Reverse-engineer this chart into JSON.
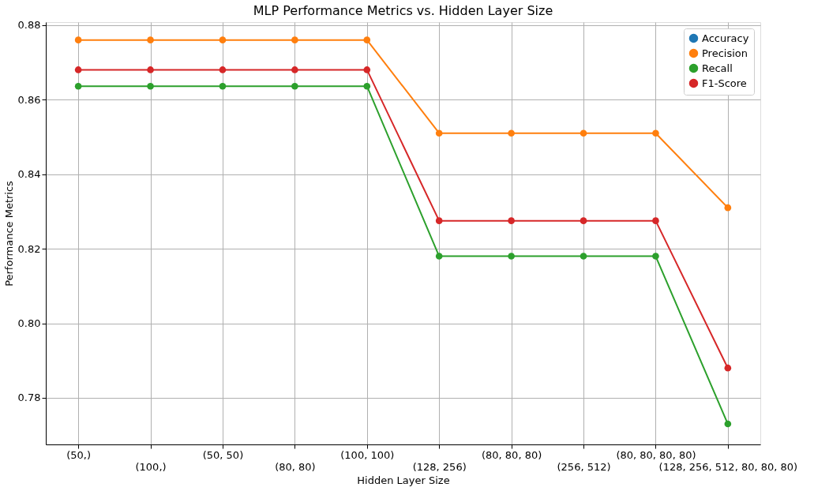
{
  "chart_data": {
    "type": "line",
    "title": "MLP Performance Metrics vs. Hidden Layer Size",
    "xlabel": "Hidden Layer Size",
    "ylabel": "Performance Metrics",
    "categories": [
      "(50,)",
      "(100,)",
      "(50, 50)",
      "(80, 80)",
      "(100, 100)",
      "(128, 256)",
      "(80, 80, 80)",
      "(256, 512)",
      "(80, 80, 80, 80)",
      "(128, 256, 512, 80, 80, 80)"
    ],
    "series": [
      {
        "name": "Accuracy",
        "color": "#1f77b4",
        "values": [
          null,
          null,
          null,
          null,
          null,
          null,
          null,
          null,
          null,
          null
        ]
      },
      {
        "name": "Precision",
        "color": "#ff7f0e",
        "values": [
          0.876,
          0.876,
          0.876,
          0.876,
          0.876,
          0.851,
          0.851,
          0.851,
          0.851,
          0.831
        ]
      },
      {
        "name": "Recall",
        "color": "#2ca02c",
        "values": [
          0.8636,
          0.8636,
          0.8636,
          0.8636,
          0.8636,
          0.818,
          0.818,
          0.818,
          0.818,
          0.773
        ]
      },
      {
        "name": "F1-Score",
        "color": "#d62728",
        "values": [
          0.868,
          0.868,
          0.868,
          0.868,
          0.868,
          0.8275,
          0.8275,
          0.8275,
          0.8275,
          0.788
        ]
      }
    ],
    "ylim": [
      0.7675,
      0.8808
    ],
    "yticks": [
      {
        "value": 0.78,
        "label": "0.78"
      },
      {
        "value": 0.8,
        "label": "0.80"
      },
      {
        "value": 0.82,
        "label": "0.82"
      },
      {
        "value": 0.84,
        "label": "0.84"
      },
      {
        "value": 0.86,
        "label": "0.86"
      },
      {
        "value": 0.88,
        "label": "0.88"
      }
    ],
    "grid": true,
    "legend": "top right",
    "marker": "circle",
    "line_style": "solid"
  }
}
